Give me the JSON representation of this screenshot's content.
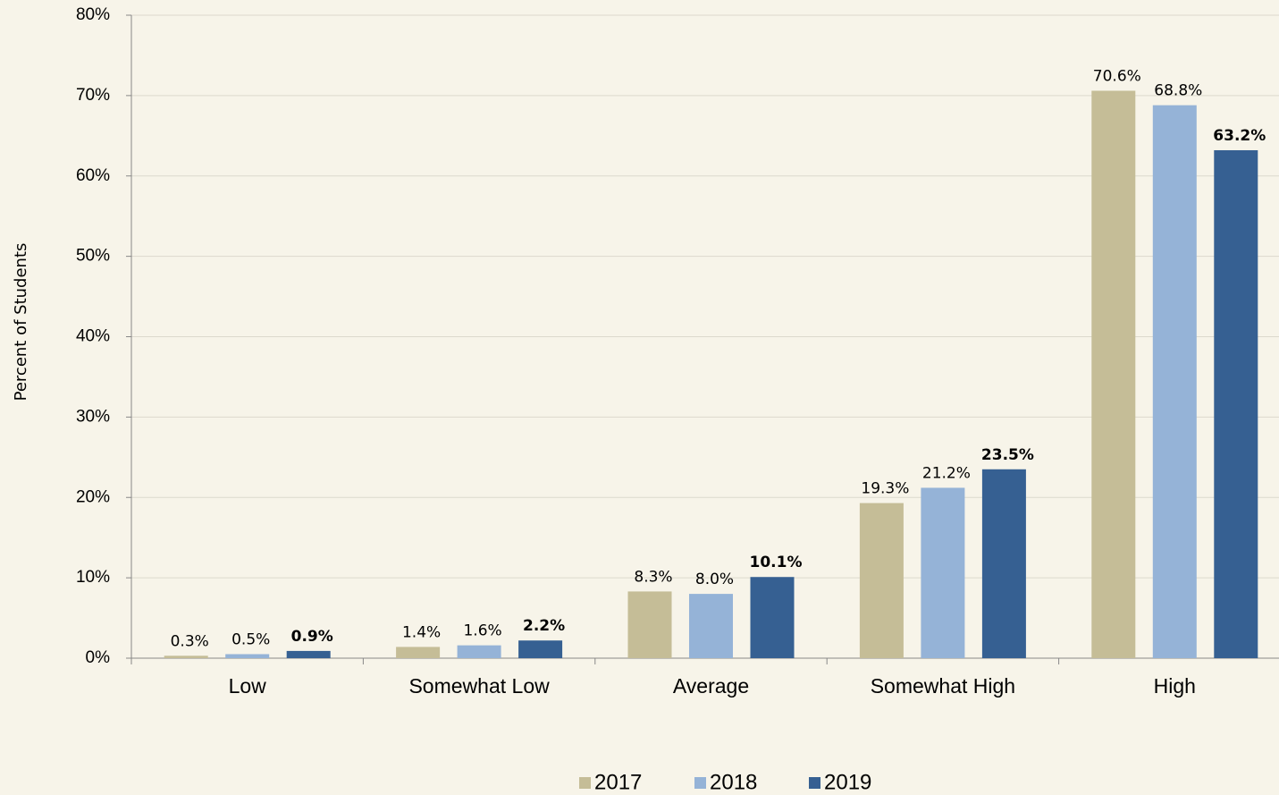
{
  "chart_data": {
    "type": "bar",
    "y_label": "Percent of Students",
    "categories": [
      "Low",
      "Somewhat Low",
      "Average",
      "Somewhat High",
      "High"
    ],
    "series": [
      {
        "name": "2017",
        "color": "#c5bd97",
        "values": [
          0.3,
          1.4,
          8.3,
          19.3,
          70.6
        ],
        "value_labels": [
          "0.3%",
          "1.4%",
          "8.3%",
          "19.3%",
          "70.6%"
        ],
        "bold_labels": false
      },
      {
        "name": "2018",
        "color": "#95b3d7",
        "values": [
          0.5,
          1.6,
          8.0,
          21.2,
          68.8
        ],
        "value_labels": [
          "0.5%",
          "1.6%",
          "8.0%",
          "21.2%",
          "68.8%"
        ],
        "bold_labels": false
      },
      {
        "name": "2019",
        "color": "#366092",
        "values": [
          0.9,
          2.2,
          10.1,
          23.5,
          63.2
        ],
        "value_labels": [
          "0.9%",
          "2.2%",
          "10.1%",
          "23.5%",
          "63.2%"
        ],
        "bold_labels": true
      }
    ],
    "ylim": [
      0,
      80
    ],
    "yticks": [
      {
        "value": 0,
        "label": "0%"
      },
      {
        "value": 10,
        "label": "10%"
      },
      {
        "value": 20,
        "label": "20%"
      },
      {
        "value": 30,
        "label": "30%"
      },
      {
        "value": 40,
        "label": "40%"
      },
      {
        "value": 50,
        "label": "50%"
      },
      {
        "value": 60,
        "label": "60%"
      },
      {
        "value": 70,
        "label": "70%"
      },
      {
        "value": 80,
        "label": "80%"
      }
    ],
    "grid": true,
    "legend": "bottom"
  }
}
